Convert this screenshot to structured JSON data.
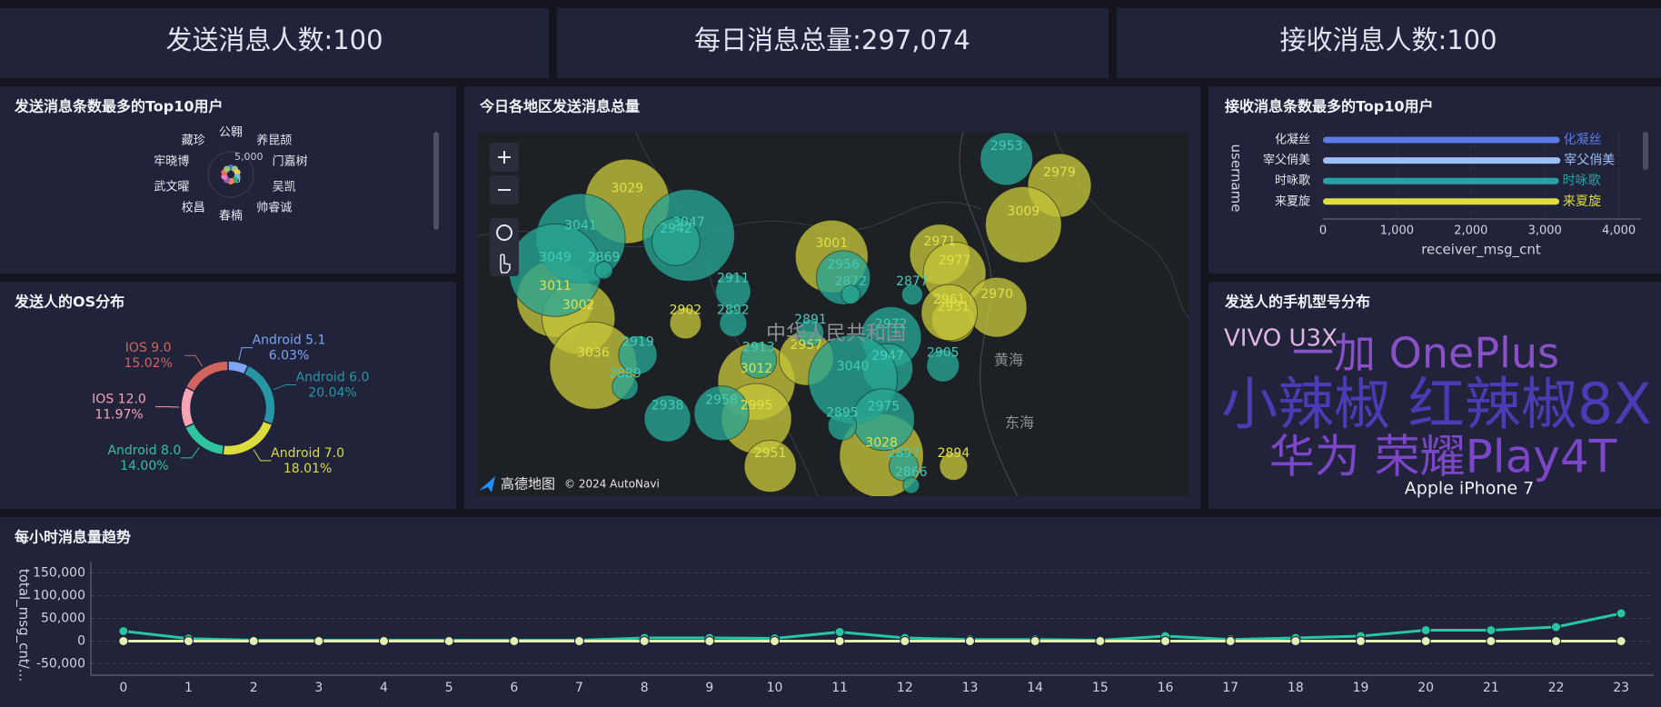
{
  "kpis": [
    "发送消息人数:100",
    "每日消息总量:297,074",
    "接收消息人数:100"
  ],
  "chart_data": [
    {
      "type": "polar",
      "title": "发送消息条数最多的Top10用户",
      "categories": [
        "公翱",
        "养昆颉",
        "门嘉树",
        "吴凯",
        "帅睿诚",
        "春楠",
        "校昌",
        "武文曜",
        "牢晓博",
        "藏珍"
      ],
      "values": [
        3020,
        3010,
        3005,
        3000,
        2995,
        2990,
        2985,
        2980,
        2975,
        2970
      ],
      "colors": [
        "#5470c6",
        "#91cc75",
        "#fac858",
        "#73c0de",
        "#3ba272",
        "#fc8452",
        "#9a60b4",
        "#ea7ccc",
        "#ee6666",
        "#91cc75"
      ],
      "rlim": [
        0,
        6000
      ],
      "rticks": [
        0,
        {
          "value": 5000,
          "label": "5,000"
        }
      ]
    },
    {
      "type": "map_bubble",
      "title": "今日各地区发送消息总量",
      "labels": [
        "中华人民共和国",
        "黄海",
        "东海"
      ],
      "provider": "高德地图",
      "attribution": "© 2024 AutoNavi",
      "series": [
        {
          "color": "#c4c43a",
          "label_color": "#e4e048",
          "values": [
            3029,
            3011,
            3002,
            3036,
            3012,
            2995,
            3001,
            2971,
            2977,
            2979,
            3009,
            2970,
            3028,
            2902,
            2957,
            2894,
            2951,
            2931,
            2961
          ]
        },
        {
          "color": "#27a595",
          "label_color": "#48cbb8",
          "values": [
            3041,
            3047,
            3049,
            2869,
            2942,
            2911,
            2892,
            2919,
            2938,
            2889,
            2913,
            2956,
            2872,
            2953,
            2877,
            2905,
            2972,
            2947,
            3040,
            2975,
            2895,
            2897,
            2866,
            2958,
            2891
          ]
        }
      ]
    },
    {
      "type": "hbar",
      "title": "接收消息条数最多的Top10用户",
      "categories": [
        "化凝丝",
        "宰父俏美",
        "时咏歌",
        "来夏旋"
      ],
      "values": [
        3200,
        3210,
        3190,
        3195
      ],
      "colors": [
        "#5b7ce8",
        "#9cc0f5",
        "#2ba0a5",
        "#dede3e"
      ],
      "xlim": [
        0,
        4300
      ],
      "xticks": [
        0,
        {
          "value": 1000,
          "label": "1,000"
        },
        {
          "value": 2000,
          "label": "2,000"
        },
        {
          "value": 3000,
          "label": "3,000"
        },
        {
          "value": 4000,
          "label": "4,000"
        }
      ],
      "xlabel": "receiver_msg_cnt",
      "ylabel": "username"
    },
    {
      "type": "pie",
      "title": "发送人的OS分布",
      "categories": [
        "Android 5.1",
        "Android 6.0",
        "Android 7.0",
        "Android 8.0",
        "IOS 12.0",
        "IOS 9.0"
      ],
      "values": [
        6.03,
        20.04,
        18.01,
        14.0,
        11.97,
        15.02
      ],
      "value_labels": [
        "6.03%",
        "20.04%",
        "18.01%",
        "14.00%",
        "11.97%",
        "15.02%"
      ],
      "colors": [
        "#7ea4f4",
        "#2696a6",
        "#dcdc3c",
        "#30c49e",
        "#f4a4b4",
        "#d2645e"
      ]
    },
    {
      "type": "wordcloud",
      "title": "发送人的手机型号分布",
      "words": [
        "VIVO U3X",
        "一加 OnePlus",
        "小辣椒 红辣椒8X",
        "华为 荣耀Play4T",
        "Apple iPhone 7"
      ],
      "colors": [
        "#e2b4e2",
        "#8a50c8",
        "#4a3cb4",
        "#7c46c8",
        "#f0f0f4"
      ]
    },
    {
      "type": "line",
      "title": "每小时消息量趋势",
      "ylabel": "total_msg_cnt/...",
      "categories": [
        0,
        1,
        2,
        3,
        4,
        5,
        6,
        7,
        8,
        9,
        10,
        11,
        12,
        13,
        14,
        15,
        16,
        17,
        18,
        19,
        20,
        21,
        22,
        23
      ],
      "series": [
        {
          "color": "#26c6a2",
          "values": [
            22000,
            5500,
            2000,
            2000,
            2000,
            2000,
            2000,
            2000,
            7000,
            7000,
            6000,
            20000,
            7000,
            3500,
            3500,
            2000,
            11000,
            3500,
            7000,
            11000,
            24000,
            24000,
            31000,
            61000
          ]
        },
        {
          "color": "#e6efb2",
          "values": [
            0,
            0,
            0,
            0,
            0,
            0,
            0,
            0,
            0,
            0,
            0,
            0,
            0,
            0,
            0,
            0,
            0,
            0,
            0,
            0,
            0,
            0,
            0,
            0
          ]
        }
      ],
      "ylim": [
        -75000,
        175000
      ],
      "yticks": [
        {
          "value": -50000,
          "label": "-50,000"
        },
        0,
        {
          "value": 50000,
          "label": "50,000"
        },
        {
          "value": 100000,
          "label": "100,000"
        },
        {
          "value": 150000,
          "label": "150,000"
        }
      ],
      "grid": true
    }
  ]
}
